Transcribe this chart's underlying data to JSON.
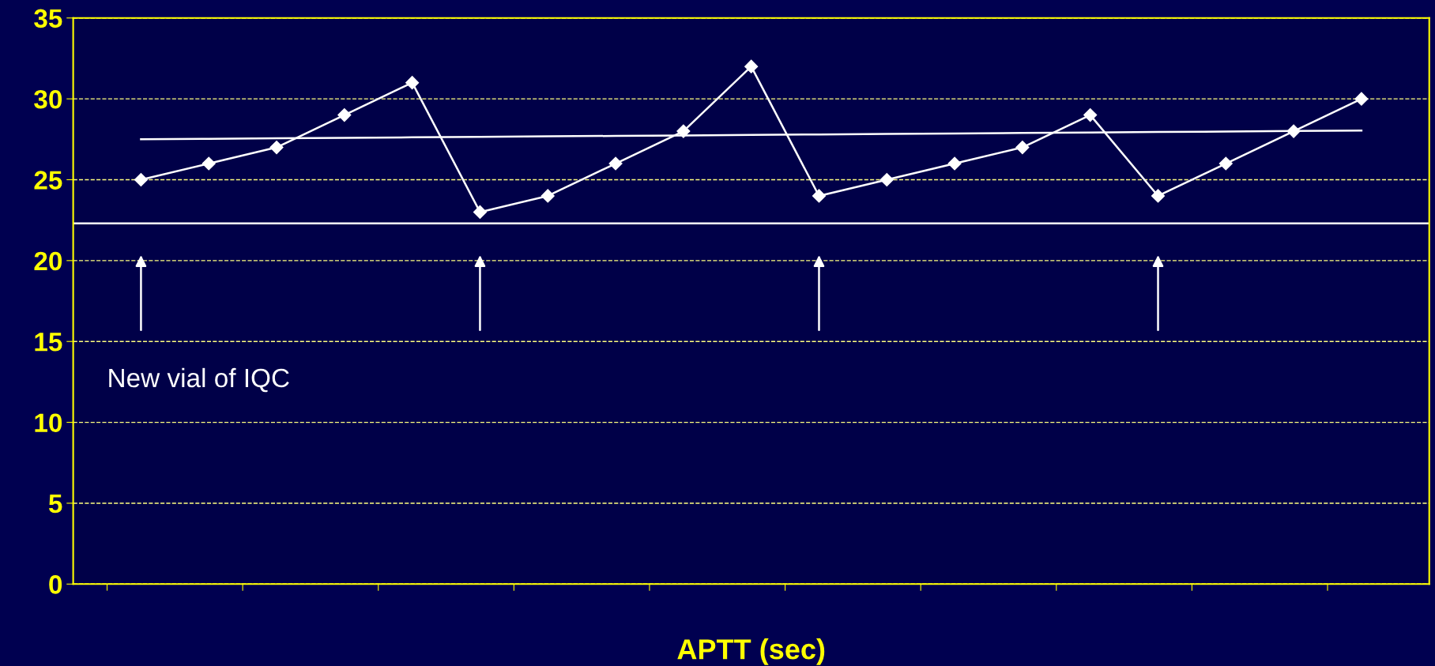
{
  "chart_data": {
    "type": "line",
    "xlabel": "APTT (sec)",
    "categories": [
      null,
      null,
      null,
      null,
      null,
      null,
      null,
      null,
      null,
      null,
      null,
      null,
      null,
      null,
      null,
      null,
      null,
      null,
      null
    ],
    "series": [
      {
        "color": "#ffffff",
        "marker": "diamond",
        "values": [
          25,
          26,
          27,
          29,
          31,
          23,
          24,
          26,
          28,
          32,
          24,
          25,
          26,
          27,
          29,
          24,
          26,
          28,
          30
        ]
      },
      {
        "type": "line",
        "color": "#ffffff",
        "marker": "none",
        "values": [
          27.5,
          27.53,
          27.56,
          27.59,
          27.62,
          27.65,
          27.68,
          27.71,
          27.74,
          27.77,
          27.8,
          27.83,
          27.86,
          27.89,
          27.92,
          27.95,
          27.98,
          28.01,
          28.04
        ]
      }
    ],
    "ref_lines": [
      {
        "axis": "y",
        "value": 22.3,
        "color": "#ffffff"
      }
    ],
    "annotations": [
      "New vial of IQC"
    ],
    "ylim": [
      0,
      35
    ],
    "yticks": [
      0,
      5,
      10,
      15,
      20,
      25,
      30,
      35
    ],
    "grid": "y",
    "legend": false
  }
}
